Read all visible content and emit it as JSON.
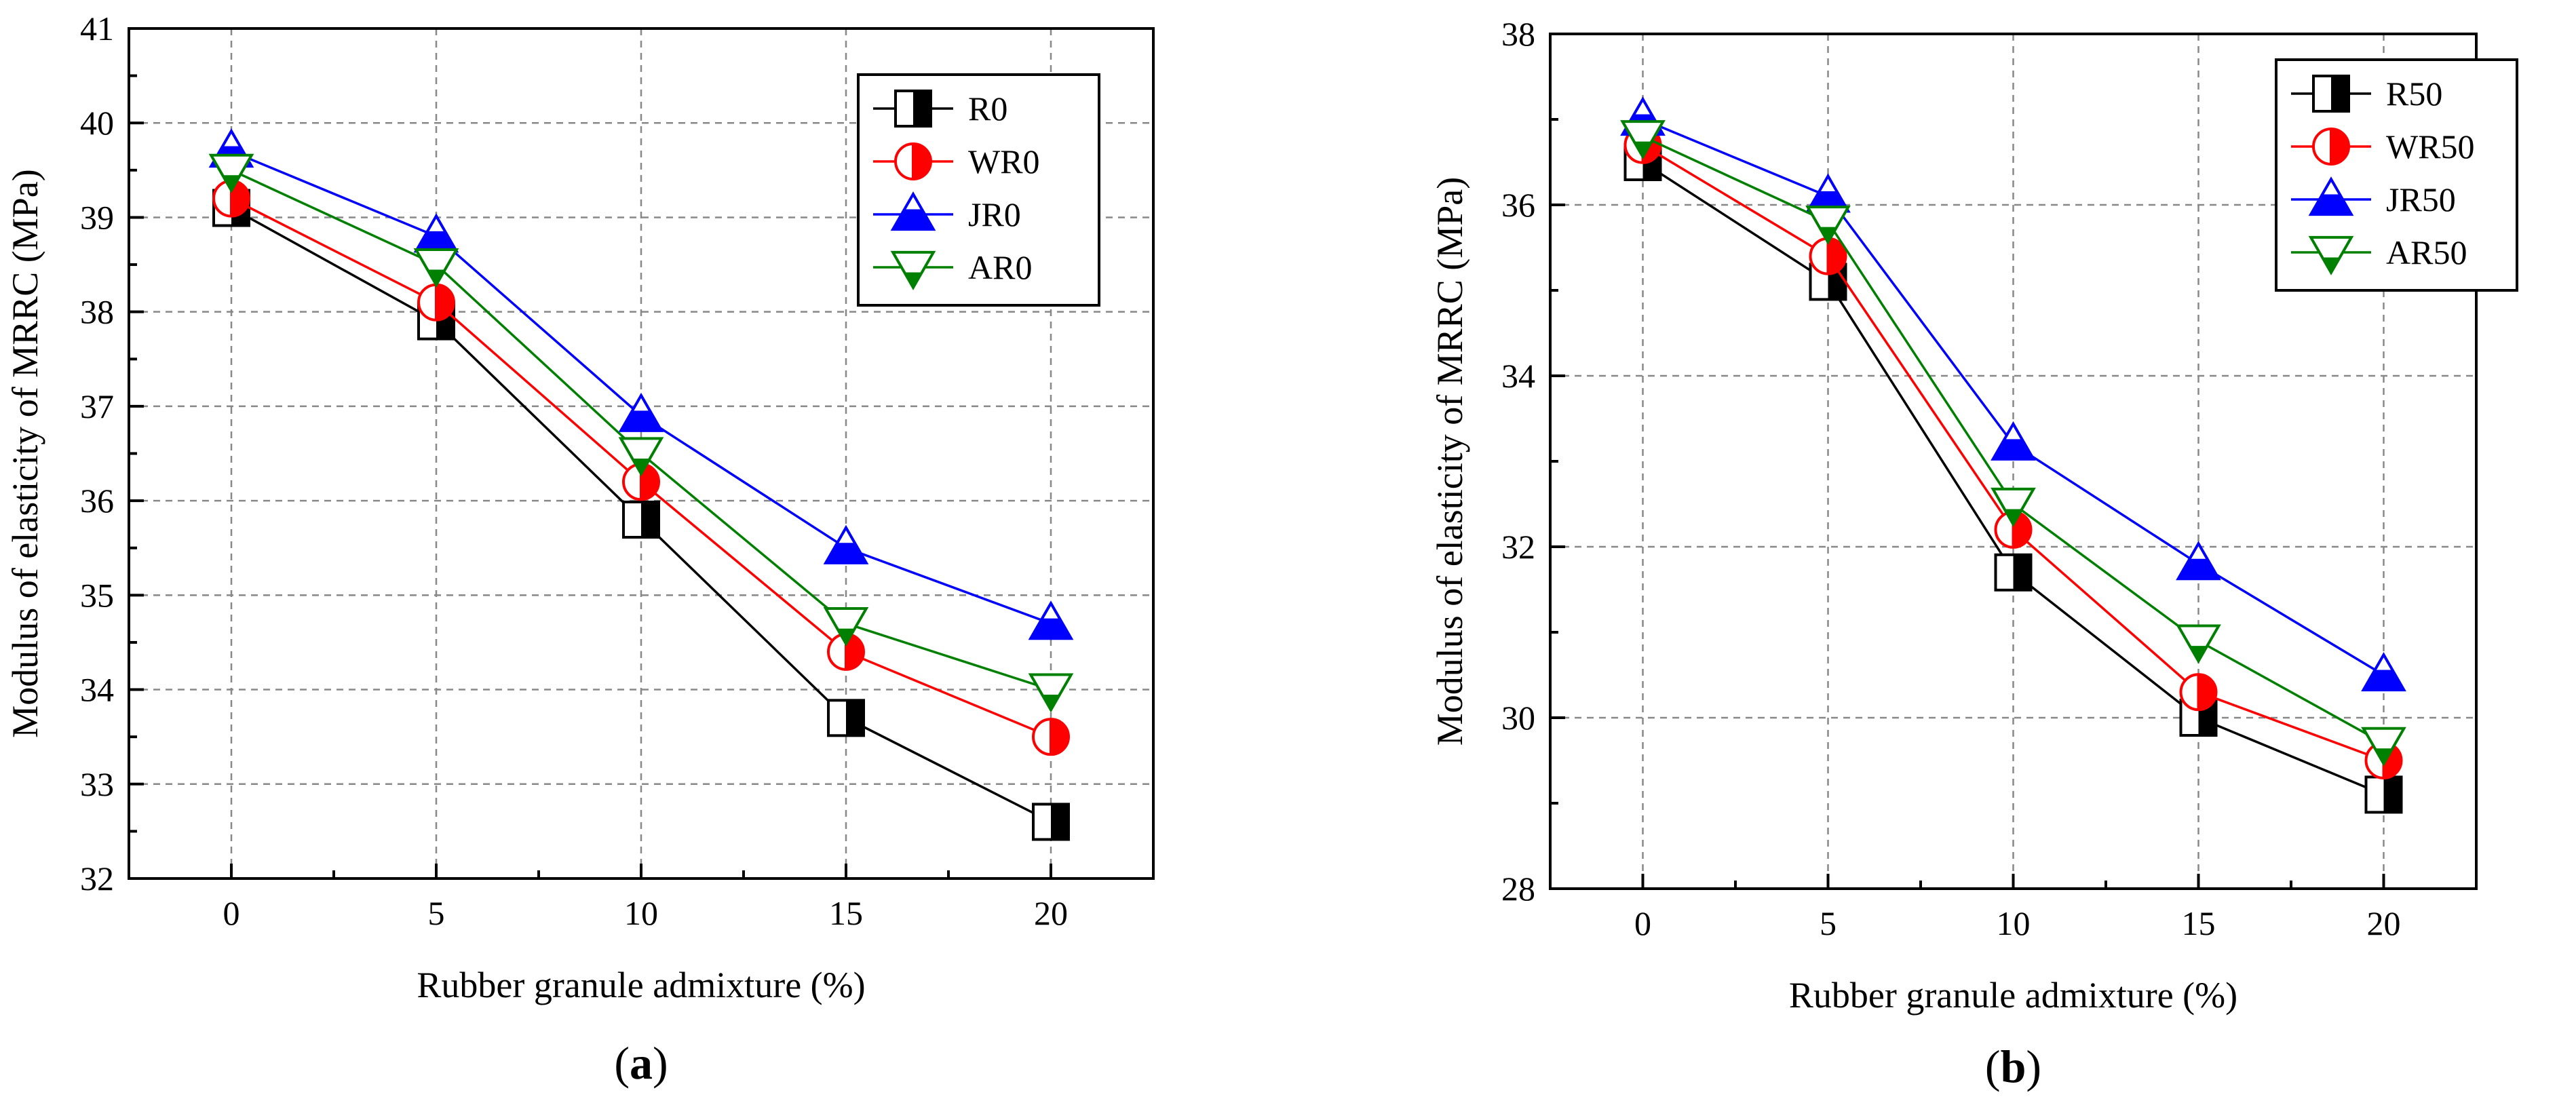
{
  "chart_data": [
    {
      "type": "line",
      "panel_label": "a",
      "xlabel": "Rubber granule admixture (%)",
      "ylabel": "Modulus of elasticity of MRRC (MPa)",
      "x": [
        0,
        5,
        10,
        15,
        20
      ],
      "xticks": [
        "0",
        "5",
        "10",
        "15",
        "20"
      ],
      "xlim": [
        -2.5,
        22.5
      ],
      "ylim": [
        32,
        41
      ],
      "yticks": [
        "32",
        "33",
        "34",
        "35",
        "36",
        "37",
        "38",
        "39",
        "40",
        "41"
      ],
      "grid": true,
      "legend_position": "top-right",
      "series": [
        {
          "name": "R0",
          "values": [
            39.1,
            37.9,
            35.8,
            33.7,
            32.6
          ],
          "color": "#000000",
          "marker": "half-square"
        },
        {
          "name": "WR0",
          "values": [
            39.2,
            38.1,
            36.2,
            34.4,
            33.5
          ],
          "color": "#ff0000",
          "marker": "half-circle"
        },
        {
          "name": "JR0",
          "values": [
            39.7,
            38.8,
            36.9,
            35.5,
            34.7
          ],
          "color": "#0000ff",
          "marker": "half-triangle-up"
        },
        {
          "name": "AR0",
          "values": [
            39.5,
            38.5,
            36.5,
            34.7,
            34.0
          ],
          "color": "#008000",
          "marker": "half-triangle-down"
        }
      ]
    },
    {
      "type": "line",
      "panel_label": "b",
      "xlabel": "Rubber granule admixture (%)",
      "ylabel": "Modulus of elasticity of MRRC (MPa)",
      "x": [
        0,
        5,
        10,
        15,
        20
      ],
      "xticks": [
        "0",
        "5",
        "10",
        "15",
        "20"
      ],
      "xlim": [
        -2.5,
        22.5
      ],
      "ylim": [
        28,
        38
      ],
      "yticks": [
        "28",
        "30",
        "32",
        "34",
        "36",
        "38"
      ],
      "grid": true,
      "legend_position": "top-right",
      "series": [
        {
          "name": "R50",
          "values": [
            36.5,
            35.1,
            31.7,
            30.0,
            29.1
          ],
          "color": "#000000",
          "marker": "half-square"
        },
        {
          "name": "WR50",
          "values": [
            36.7,
            35.4,
            32.2,
            30.3,
            29.5
          ],
          "color": "#ff0000",
          "marker": "half-circle"
        },
        {
          "name": "JR50",
          "values": [
            37.0,
            36.1,
            33.2,
            31.8,
            30.5
          ],
          "color": "#0000ff",
          "marker": "half-triangle-up"
        },
        {
          "name": "AR50",
          "values": [
            36.8,
            35.8,
            32.5,
            30.9,
            29.7
          ],
          "color": "#008000",
          "marker": "half-triangle-down"
        }
      ]
    }
  ]
}
